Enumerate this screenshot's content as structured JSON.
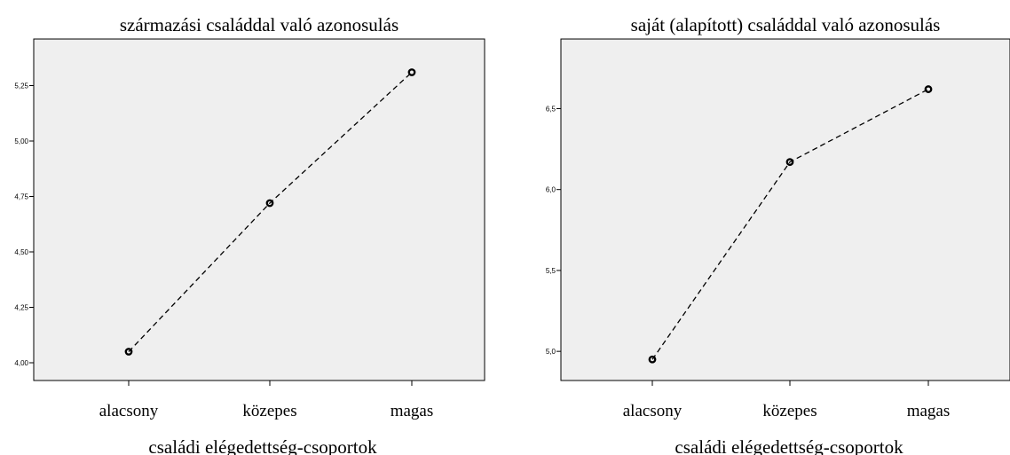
{
  "chart_data": [
    {
      "type": "line",
      "title": "származási családdal való azonosulás",
      "xlabel": "családi elégedettség-csoportok",
      "ylabel": "",
      "categories": [
        "alacsony",
        "közepes",
        "magas"
      ],
      "values": [
        4.05,
        4.72,
        5.31
      ],
      "ylim": [
        3.92,
        5.46
      ],
      "yticks": [
        "4,00",
        "4,25",
        "4,50",
        "4,75",
        "5,00",
        "5,25"
      ],
      "ytick_values": [
        4.0,
        4.25,
        4.5,
        4.75,
        5.0,
        5.25
      ],
      "grid": false,
      "line_style": "dashed",
      "marker": "circle"
    },
    {
      "type": "line",
      "title": "saját (alapított) családdal való azonosulás",
      "xlabel": "családi elégedettség-csoportok",
      "ylabel": "",
      "categories": [
        "alacsony",
        "közepes",
        "magas"
      ],
      "values": [
        4.95,
        6.17,
        6.62
      ],
      "ylim": [
        4.82,
        6.93
      ],
      "yticks": [
        "5,0",
        "5,5",
        "6,0",
        "6,5"
      ],
      "ytick_values": [
        5.0,
        5.5,
        6.0,
        6.5
      ],
      "grid": false,
      "line_style": "dashed",
      "marker": "circle"
    }
  ]
}
